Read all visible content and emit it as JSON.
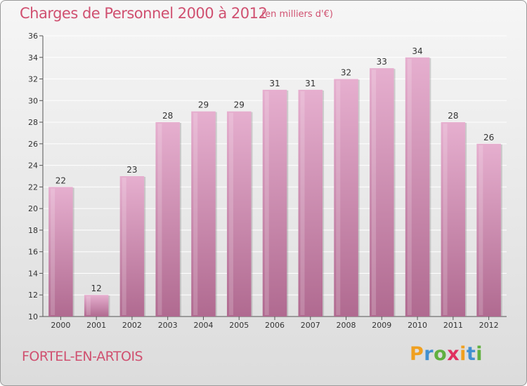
{
  "header": {
    "title": "Charges de Personnel 2000 à 2012",
    "subtitle": "(en milliers d'€)"
  },
  "footer": {
    "place": "FORTEL-EN-ARTOIS",
    "logo_letters": [
      "P",
      "r",
      "o",
      "x",
      "i",
      "t",
      "i"
    ],
    "logo_colors": [
      "#f0a020",
      "#4090d0",
      "#60b040",
      "#e03060",
      "#f0a020",
      "#4090d0",
      "#60b040"
    ]
  },
  "colors": {
    "bar": "#cf87ad",
    "bar_light": "#e6afcf",
    "bar_dark": "#b06a90",
    "text": "#333333",
    "accent": "#d05070"
  },
  "chart_data": {
    "type": "bar",
    "title": "Charges de Personnel 2000 à 2012",
    "subtitle": "(en milliers d'€)",
    "categories": [
      "2000",
      "2001",
      "2002",
      "2003",
      "2004",
      "2005",
      "2006",
      "2007",
      "2008",
      "2009",
      "2010",
      "2011",
      "2012"
    ],
    "values": [
      22,
      12,
      23,
      28,
      29,
      29,
      31,
      31,
      32,
      33,
      34,
      28,
      26
    ],
    "data_labels": [
      "22",
      "12",
      "23",
      "28",
      "29",
      "29",
      "31",
      "31",
      "32",
      "33",
      "34",
      "28",
      "26"
    ],
    "ylim": [
      10,
      36
    ],
    "yticks": [
      "10",
      "12",
      "14",
      "16",
      "18",
      "20",
      "22",
      "24",
      "26",
      "28",
      "30",
      "32",
      "34",
      "36"
    ],
    "grid": true,
    "legend": "none",
    "xlabel": "",
    "ylabel": ""
  }
}
